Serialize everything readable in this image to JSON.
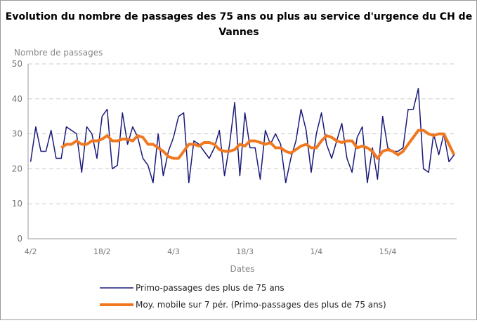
{
  "chart_data": {
    "type": "line",
    "title": "Evolution du nombre de passages des 75 ans ou plus au service d'urgence du CH de",
    "title_line2": "Vannes",
    "y_label": "Nombre de passages",
    "x_label": "Dates",
    "categories": [
      "4/2",
      null,
      null,
      null,
      null,
      null,
      null,
      null,
      null,
      null,
      null,
      null,
      null,
      null,
      "18/2",
      null,
      null,
      null,
      null,
      null,
      null,
      null,
      null,
      null,
      null,
      null,
      null,
      null,
      "4/3",
      null,
      null,
      null,
      null,
      null,
      null,
      null,
      null,
      null,
      null,
      null,
      null,
      null,
      "18/3",
      null,
      null,
      null,
      null,
      null,
      null,
      null,
      null,
      null,
      null,
      null,
      null,
      null,
      "1/4",
      null,
      null,
      null,
      null,
      null,
      null,
      null,
      null,
      null,
      null,
      null,
      null,
      null,
      "15/4",
      null,
      null,
      null,
      null,
      null,
      null,
      null,
      null,
      null,
      null,
      null,
      null,
      null
    ],
    "series": [
      {
        "name": "Primo-passages des plus de 75 ans",
        "color": "#1a1a7a",
        "width": 1.5,
        "values": [
          22,
          32,
          25,
          25,
          31,
          23,
          23,
          32,
          31,
          30,
          19,
          32,
          30,
          23,
          35,
          37,
          20,
          21,
          36,
          27,
          32,
          29,
          23,
          21,
          16,
          30,
          18,
          25,
          29,
          35,
          36,
          16,
          28,
          27,
          25,
          23,
          26,
          31,
          18,
          27,
          39,
          18,
          36,
          26,
          26,
          17,
          31,
          27,
          30,
          27,
          16,
          23,
          28,
          37,
          31,
          19,
          30,
          36,
          27,
          23,
          28,
          33,
          23,
          19,
          29,
          32,
          16,
          26,
          17,
          35,
          26,
          25,
          25,
          26,
          37,
          37,
          43,
          20,
          19,
          30,
          24,
          30,
          22,
          24
        ]
      },
      {
        "name": "Moy. mobile sur 7 pér. (Primo-passages des plus de 75 ans)",
        "color": "#f07820",
        "width": 4,
        "values": [
          null,
          null,
          null,
          null,
          null,
          null,
          26,
          27,
          27,
          28,
          27,
          27,
          28,
          28,
          28.5,
          29.5,
          28,
          28,
          28.5,
          28.5,
          28,
          29.5,
          29,
          27,
          27,
          26,
          25,
          23.5,
          23,
          23,
          25,
          27,
          27,
          26.5,
          27.5,
          27.5,
          27,
          25.5,
          25,
          25,
          25.5,
          27,
          26.5,
          28,
          28,
          27.5,
          27,
          27.5,
          26,
          26,
          25,
          24.5,
          25.5,
          26.5,
          27,
          26,
          26,
          28,
          29.5,
          29,
          28,
          27.5,
          28,
          28,
          26,
          26.5,
          26,
          25,
          23,
          25,
          25.5,
          25,
          24,
          25,
          27,
          29,
          31,
          31,
          30,
          29.5,
          30,
          30,
          27,
          24
        ]
      }
    ],
    "ylim": [
      0,
      50
    ],
    "yticks": [
      0,
      10,
      20,
      30,
      40,
      50
    ],
    "grid": true
  }
}
